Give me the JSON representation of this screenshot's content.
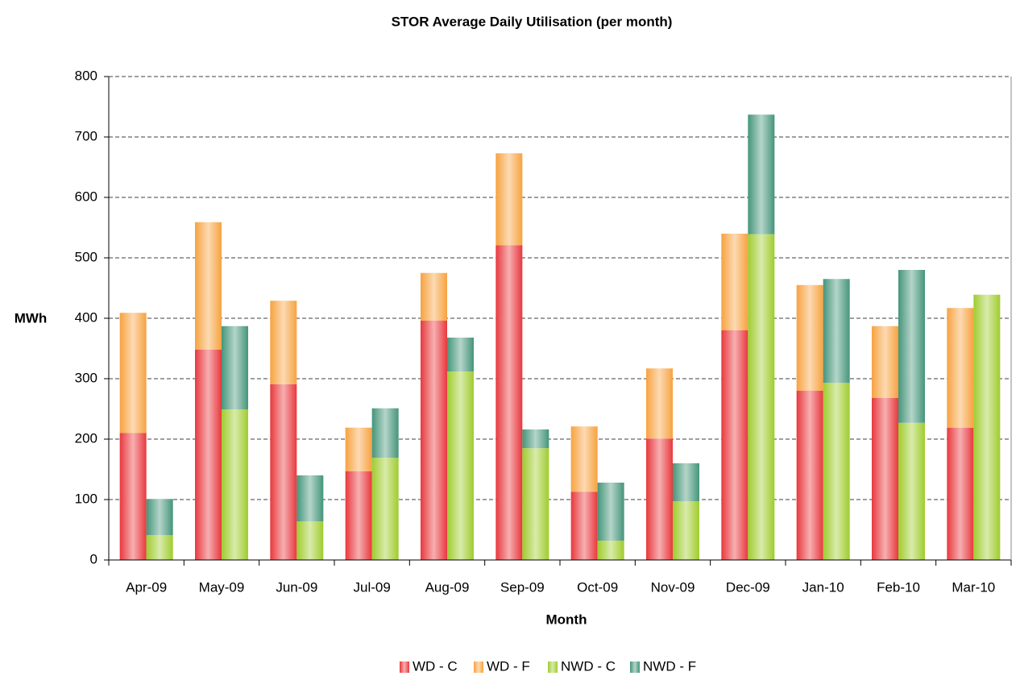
{
  "chart_data": {
    "type": "bar",
    "title": "STOR Average Daily Utilisation (per month)",
    "x_label": "Month",
    "y_label": "MWh",
    "categories": [
      "Apr-09",
      "May-09",
      "Jun-09",
      "Jul-09",
      "Aug-09",
      "Sep-09",
      "Oct-09",
      "Nov-09",
      "Dec-09",
      "Jan-10",
      "Feb-10",
      "Mar-10"
    ],
    "series": [
      {
        "name": "WD - C",
        "color": "#e8383d",
        "values": [
          210,
          348,
          291,
          147,
          396,
          521,
          113,
          201,
          380,
          280,
          268,
          219
        ]
      },
      {
        "name": "WD - F",
        "color": "#f7a240",
        "values": [
          199,
          211,
          138,
          72,
          79,
          152,
          108,
          116,
          160,
          175,
          119,
          198
        ]
      },
      {
        "name": "NWD - C",
        "color": "#9fcc2e",
        "values": [
          41,
          249,
          64,
          169,
          312,
          185,
          32,
          97,
          539,
          293,
          227,
          439
        ]
      },
      {
        "name": "NWD - F",
        "color": "#45957a",
        "values": [
          60,
          138,
          76,
          82,
          56,
          31,
          96,
          63,
          198,
          172,
          253,
          0
        ]
      }
    ],
    "ylim": [
      0,
      800
    ],
    "yticks": [
      0,
      100,
      200,
      300,
      400,
      500,
      600,
      700,
      800
    ],
    "grid": true,
    "legend": "bottom"
  }
}
